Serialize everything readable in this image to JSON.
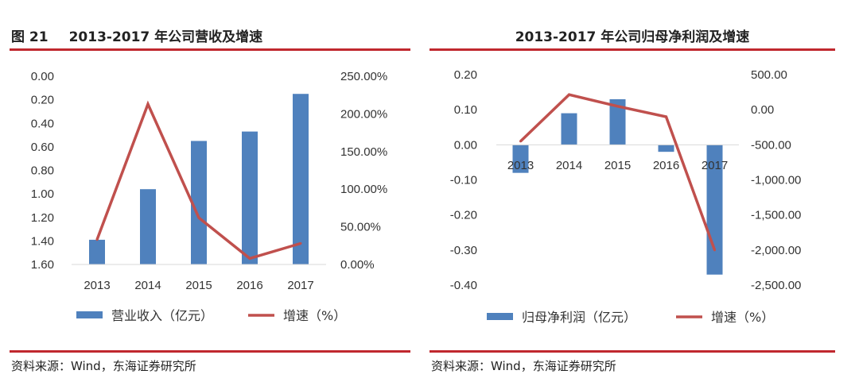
{
  "left": {
    "title_num": "图 21",
    "title": "2013-2017 年公司营收及增速",
    "source": "资料来源：Wind，东海证券研究所"
  },
  "right": {
    "title": "2013-2017 年公司归母净利润及增速",
    "source": "资料来源：Wind，东海证券研究所"
  },
  "colors": {
    "bar": "#4f81bd",
    "line": "#c0504d",
    "rule": "#c0282e"
  },
  "chart_data": [
    {
      "type": "bar",
      "title": "2013-2017 年公司营收及增速",
      "categories": [
        "2013",
        "2014",
        "2015",
        "2016",
        "2017"
      ],
      "series": [
        {
          "name": "营业收入（亿元）",
          "type": "bar",
          "axis": "left",
          "values": [
            0.21,
            0.64,
            1.05,
            1.13,
            1.45
          ]
        },
        {
          "name": "增速（%）",
          "type": "line",
          "axis": "right",
          "values": [
            33,
            213,
            62,
            8,
            28
          ]
        }
      ],
      "ylim": [
        0,
        1.6
      ],
      "yticks": [
        "0.00",
        "0.20",
        "0.40",
        "0.60",
        "0.80",
        "1.00",
        "1.20",
        "1.40",
        "1.60"
      ],
      "y2lim": [
        0,
        250
      ],
      "y2ticks": [
        "0.00%",
        "50.00%",
        "100.00%",
        "150.00%",
        "200.00%",
        "250.00%"
      ],
      "grid": false,
      "legend": "bottom"
    },
    {
      "type": "bar",
      "title": "2013-2017 年公司归母净利润及增速",
      "categories": [
        "2013",
        "2014",
        "2015",
        "2016",
        "2017"
      ],
      "series": [
        {
          "name": "归母净利润（亿元）",
          "type": "bar",
          "axis": "left",
          "values": [
            -0.08,
            0.09,
            0.13,
            -0.02,
            -0.37
          ]
        },
        {
          "name": "增速（%）",
          "type": "line",
          "axis": "right",
          "values": [
            -450,
            215,
            50,
            -100,
            -2000
          ]
        }
      ],
      "ylim": [
        -0.4,
        0.2
      ],
      "yticks": [
        "0.20",
        "0.10",
        "0.00",
        "-0.10",
        "-0.20",
        "-0.30",
        "-0.40"
      ],
      "y2lim": [
        -2500,
        500
      ],
      "y2ticks": [
        "500.00",
        "0.00",
        "-500.00",
        "-1,000.00",
        "-1,500.00",
        "-2,000.00",
        "-2,500.00"
      ],
      "grid": false,
      "legend": "bottom"
    }
  ]
}
